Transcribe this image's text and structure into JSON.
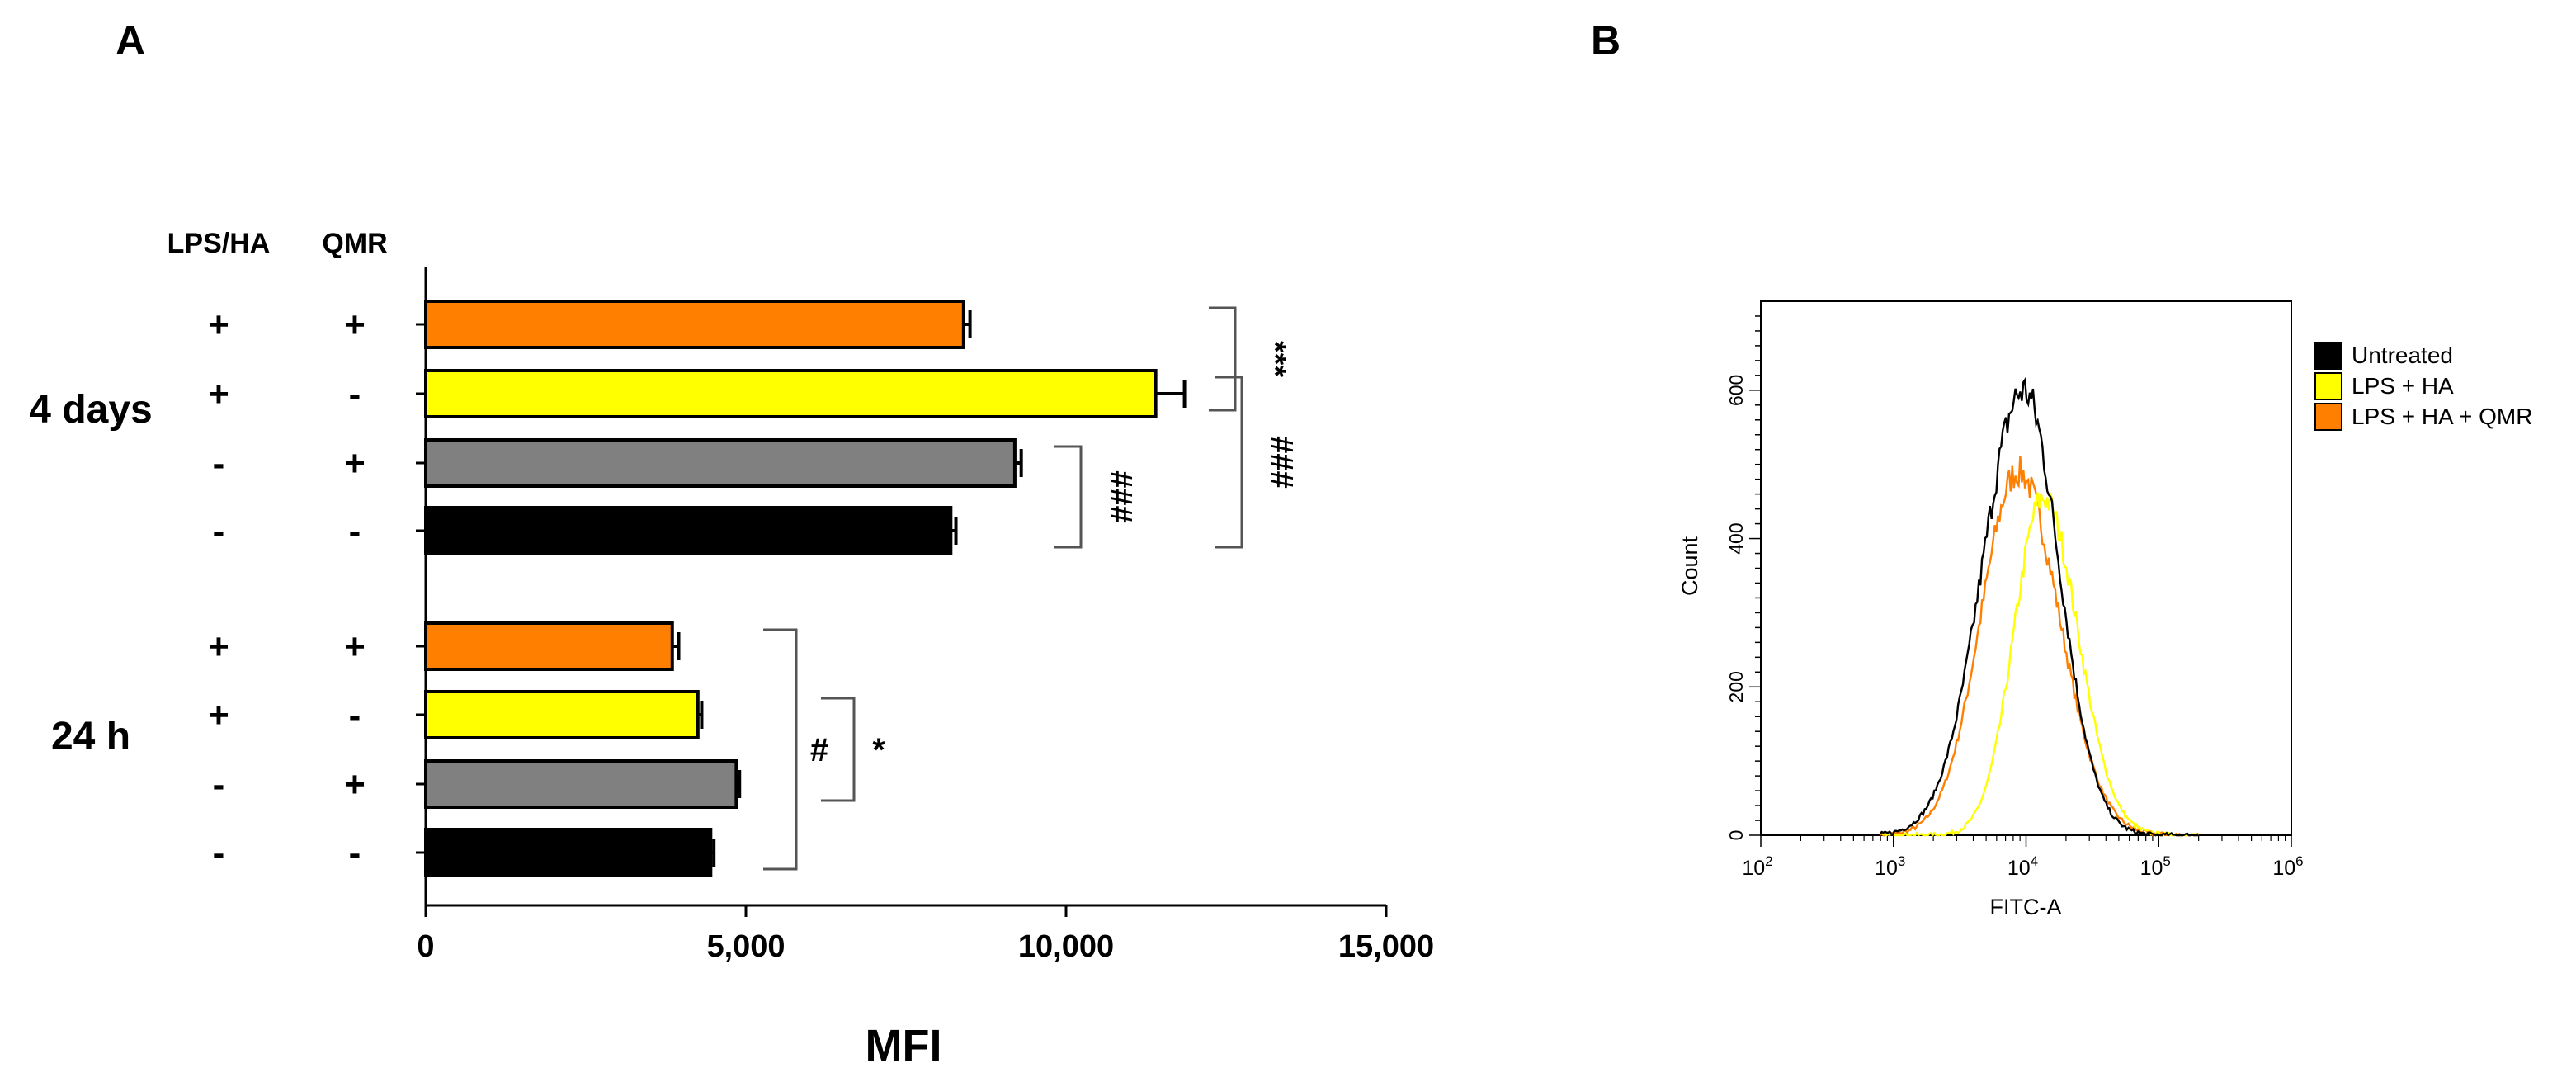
{
  "colors": {
    "orange": "#FF8000",
    "yellow": "#FFFF00",
    "gray": "#808080",
    "black": "#000000"
  },
  "chart_data": [
    {
      "panel": "A",
      "type": "bar",
      "orientation": "horizontal",
      "xlabel": "MFI",
      "xlim": [
        0,
        15000
      ],
      "xticks": [
        0,
        5000,
        10000,
        15000
      ],
      "xtick_labels": [
        "0",
        "5,000",
        "10,000",
        "15,000"
      ],
      "column_headers": [
        "LPS/HA",
        "QMR"
      ],
      "groups": [
        {
          "label": "4 days",
          "bars": [
            {
              "lps_ha": "+",
              "qmr": "+",
              "value": 8400,
              "error": 100,
              "color": "orange"
            },
            {
              "lps_ha": "+",
              "qmr": "-",
              "value": 11400,
              "error": 450,
              "color": "yellow"
            },
            {
              "lps_ha": "-",
              "qmr": "+",
              "value": 9200,
              "error": 100,
              "color": "gray"
            },
            {
              "lps_ha": "-",
              "qmr": "-",
              "value": 8200,
              "error": 80,
              "color": "black"
            }
          ],
          "significance": [
            {
              "bars": [
                0,
                1
              ],
              "label": "***",
              "level": 1
            },
            {
              "bars": [
                2,
                3
              ],
              "label": "###",
              "level": 1
            },
            {
              "bars": [
                1,
                3
              ],
              "label": "###",
              "level": 2
            }
          ]
        },
        {
          "label": "24 h",
          "bars": [
            {
              "lps_ha": "+",
              "qmr": "+",
              "value": 3850,
              "error": 100,
              "color": "orange"
            },
            {
              "lps_ha": "+",
              "qmr": "-",
              "value": 4250,
              "error": 60,
              "color": "yellow"
            },
            {
              "lps_ha": "-",
              "qmr": "+",
              "value": 4850,
              "error": 50,
              "color": "gray"
            },
            {
              "lps_ha": "-",
              "qmr": "-",
              "value": 4450,
              "error": 50,
              "color": "black"
            }
          ],
          "significance": [
            {
              "bars": [
                1,
                2
              ],
              "label": "*",
              "level": 1
            },
            {
              "bars": [
                0,
                3
              ],
              "label": "#",
              "level": 2
            }
          ]
        }
      ]
    },
    {
      "panel": "B",
      "type": "line",
      "xlabel": "FITC-A",
      "ylabel": "Count",
      "xscale": "log",
      "xlim_log10": [
        2,
        6
      ],
      "xtick_exponents": [
        "2",
        "3",
        "4",
        "5",
        "6"
      ],
      "xtick_base": "10",
      "ylim": [
        0,
        720
      ],
      "yticks": [
        0,
        200,
        400,
        600
      ],
      "ytick_labels": [
        "0",
        "200",
        "400",
        "600"
      ],
      "legend": [
        "Untreated",
        "LPS + HA",
        "LPS + HA + QMR"
      ],
      "series": [
        {
          "name": "Untreated",
          "color": "black",
          "peak_log10": 3.98,
          "peak": 600,
          "sigma_left": 0.31,
          "sigma_right": 0.27
        },
        {
          "name": "LPS + HA",
          "color": "yellow",
          "peak_log10": 4.13,
          "peak": 455,
          "sigma_left": 0.22,
          "sigma_right": 0.26
        },
        {
          "name": "LPS + HA + QMR",
          "color": "orange",
          "peak_log10": 3.94,
          "peak": 490,
          "sigma_left": 0.28,
          "sigma_right": 0.31
        }
      ]
    }
  ]
}
